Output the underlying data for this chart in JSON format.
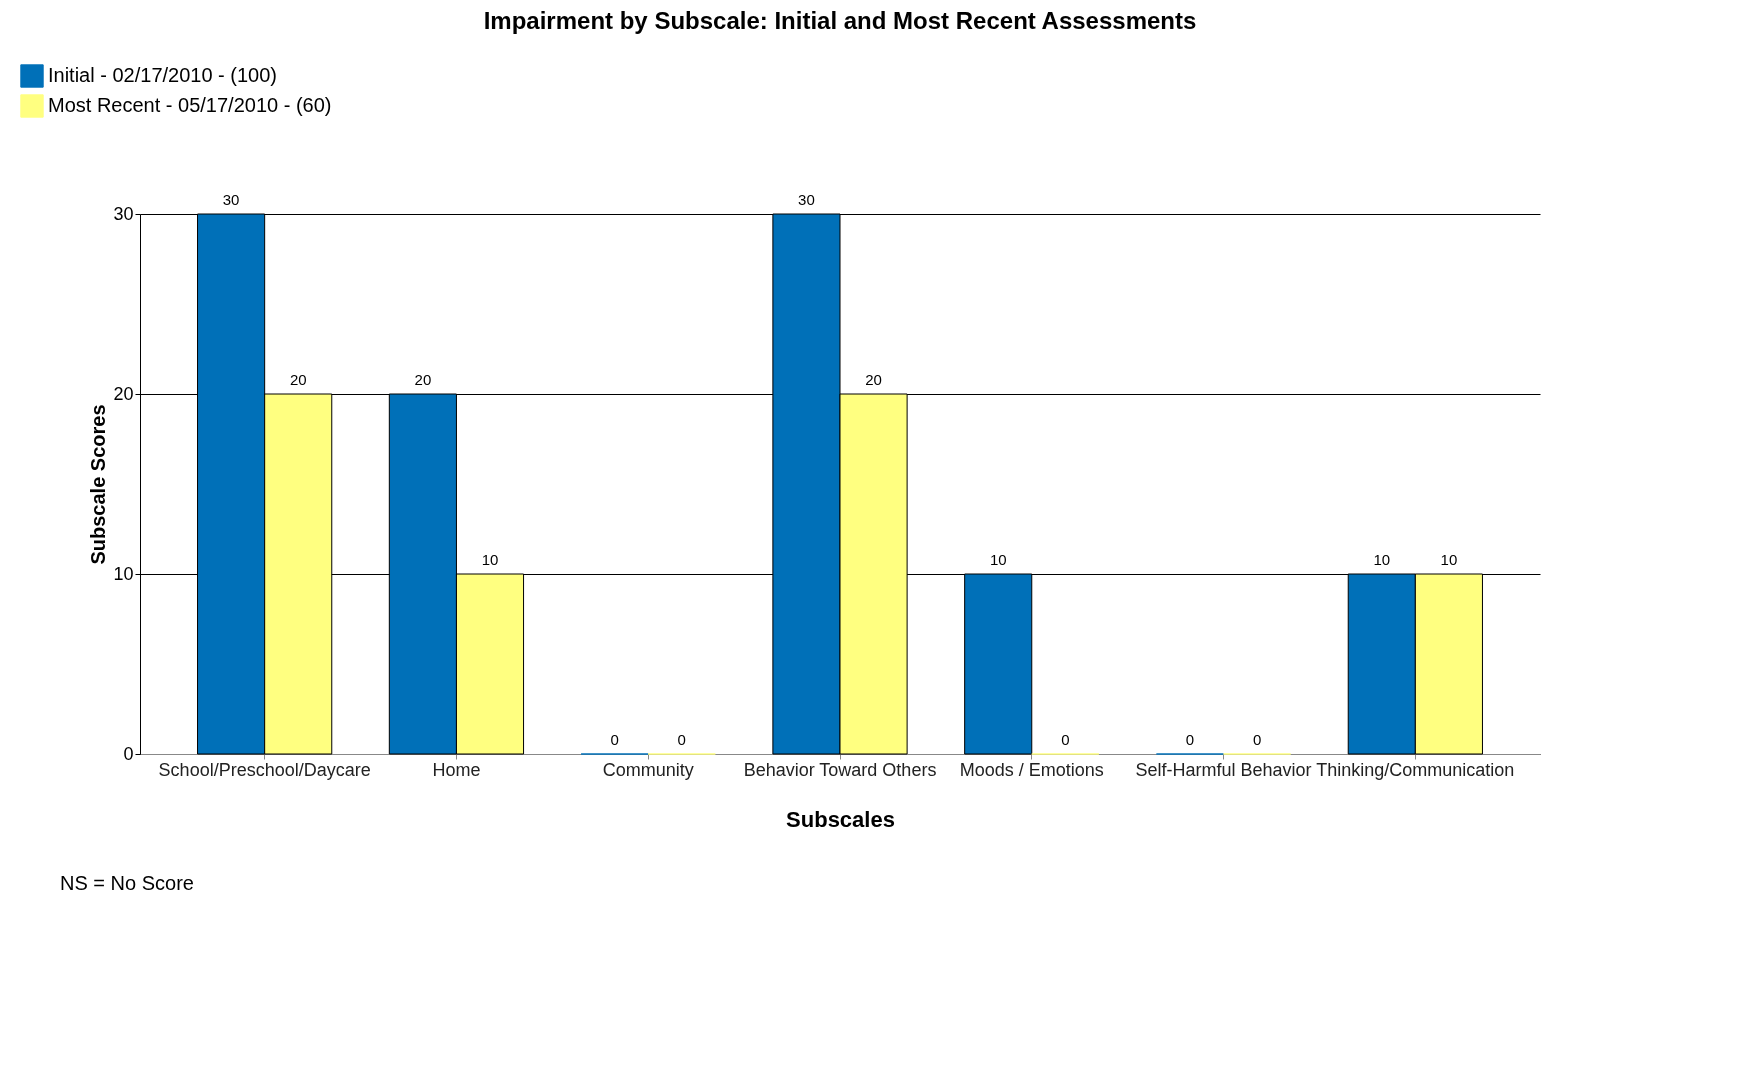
{
  "chart_data": {
    "type": "bar",
    "title": "Impairment by Subscale: Initial and Most Recent Assessments",
    "xlabel": "Subscales",
    "ylabel": "Subscale Scores",
    "categories": [
      "School/Preschool/Daycare",
      "Home",
      "Community",
      "Behavior Toward Others",
      "Moods / Emotions",
      "Self-Harmful Behavior",
      "Thinking/Communication"
    ],
    "series": [
      {
        "name": "Initial - 02/17/2010 - (100)",
        "color": "#0070b8",
        "values": [
          30,
          20,
          0,
          30,
          10,
          0,
          10
        ]
      },
      {
        "name": "Most Recent - 05/17/2010 - (60)",
        "color": "#ffff80",
        "values": [
          20,
          10,
          0,
          20,
          0,
          0,
          10
        ]
      }
    ],
    "ylim": [
      0,
      30
    ],
    "yticks": [
      0,
      10,
      20,
      30
    ],
    "grid": "y",
    "legend": "top left",
    "data_labels": true,
    "annotations": [
      "NS = No Score"
    ]
  }
}
